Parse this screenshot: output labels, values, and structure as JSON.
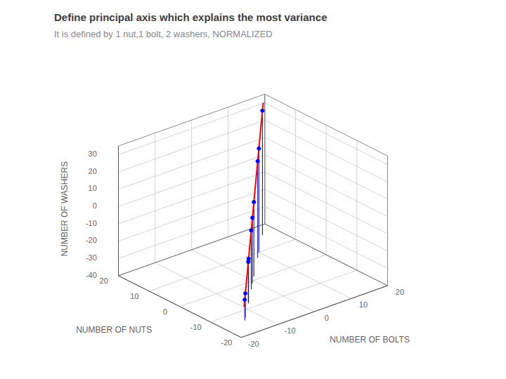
{
  "chart_data": {
    "type": "scatter3d",
    "title": "Define principal axis which explains the most variance",
    "subtitle": "It is defined by 1 nut,1 bolt, 2 washers, NORMALIZED",
    "xlabel": "NUMBER OF BOLTS",
    "ylabel": "NUMBER OF NUTS",
    "zlabel": "NUMBER OF WASHERS",
    "xlim": [
      -20,
      20
    ],
    "ylim": [
      -20,
      20
    ],
    "zlim": [
      -40,
      35
    ],
    "xticks": [
      -20,
      -10,
      0,
      10,
      20
    ],
    "yticks": [
      -20,
      -10,
      0,
      10,
      20
    ],
    "zticks": [
      -40,
      -30,
      -20,
      -10,
      0,
      10,
      20,
      30
    ],
    "grid": true,
    "series": [
      {
        "type": "stem",
        "color": "#0000AA",
        "x": [
          16,
          10,
          8,
          1.5,
          -1,
          -3,
          -7.5,
          -8,
          -13,
          -14
        ],
        "y": [
          16,
          10,
          8,
          1.5,
          -1,
          -3,
          -7.5,
          -8,
          -13,
          -14
        ],
        "z": [
          32,
          20,
          16,
          3,
          -2,
          -6,
          -15,
          -16,
          -26,
          -28
        ]
      },
      {
        "type": "scatter",
        "color": "#0000FF",
        "x": [
          16,
          10,
          8,
          1.5,
          -1,
          -3,
          -7.5,
          -8,
          -13,
          -14
        ],
        "y": [
          16,
          10,
          8,
          1.5,
          -1,
          -3,
          -7.5,
          -8,
          -13,
          -14
        ],
        "z": [
          32,
          20,
          16,
          3,
          -2,
          -6,
          -15,
          -16,
          -26,
          -28
        ]
      },
      {
        "type": "line",
        "color": "#FF0000",
        "x": [
          -15.12,
          17.28
        ],
        "y": [
          -15.12,
          17.28
        ],
        "z": [
          -30.24,
          34.56
        ]
      }
    ]
  }
}
